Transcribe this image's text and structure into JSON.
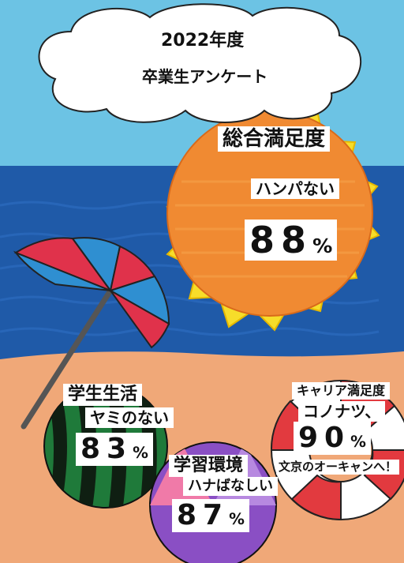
{
  "header": {
    "year": "2022年度",
    "title": "卒業生アンケート"
  },
  "overall": {
    "title": "総合満足度",
    "phrase": "ハンパない",
    "value": "88",
    "unit": "%",
    "percent": 88
  },
  "student_life": {
    "title": "学生生活",
    "phrase": "ヤミのない",
    "value": "83",
    "unit": "%",
    "percent": 83
  },
  "learning_env": {
    "title": "学習環境",
    "phrase": "ハナばなしい",
    "value": "87",
    "unit": "%",
    "percent": 87
  },
  "career": {
    "title": "キャリア満足度",
    "phrase": "コノナツ、",
    "value": "90",
    "unit": "%",
    "percent": 90,
    "footer": "文京のオーキャンへ！"
  },
  "colors": {
    "sky": "#6cc3e4",
    "sea": "#1f5aa8",
    "sand": "#f0a878",
    "sun": "#f08a32",
    "sun_rays": "#f7dd2a",
    "umbrella_red": "#e0324b",
    "umbrella_blue": "#2f8fd1",
    "watermelon_green": "#1f7a3a",
    "ring_red": "#e23a3f",
    "ball_purple": "#8a4fc4",
    "ball_pink": "#f07aa8"
  }
}
